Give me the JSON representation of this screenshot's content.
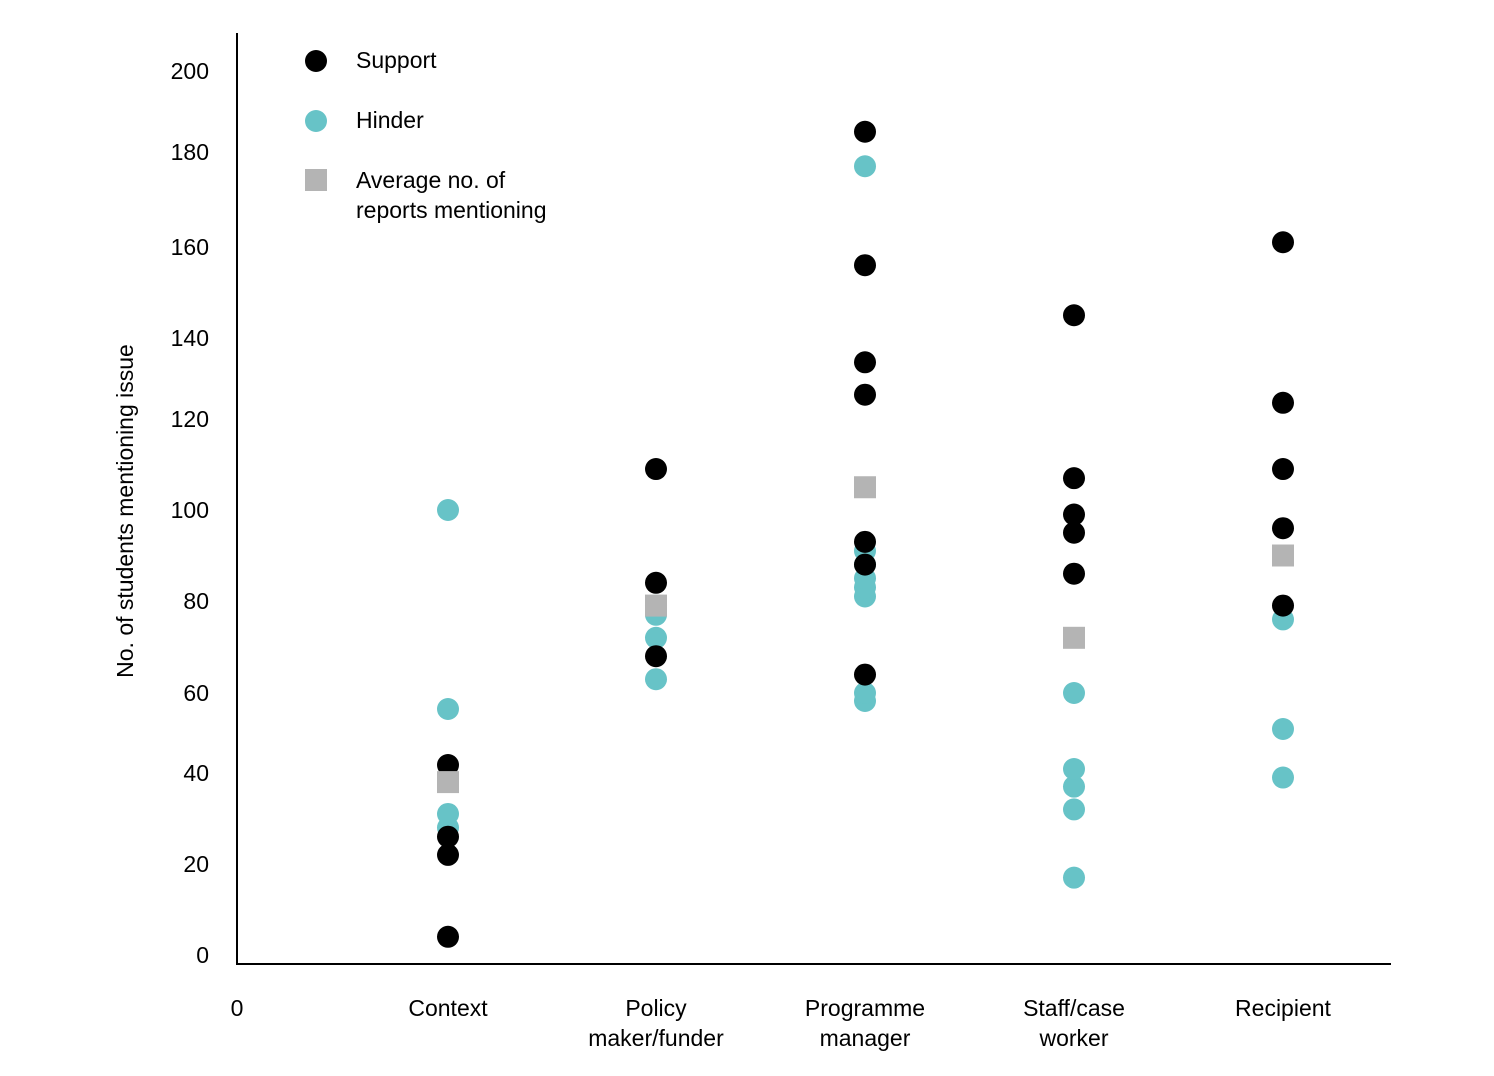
{
  "chart_data": {
    "type": "scatter",
    "ylabel": "No. of students mentioning issue",
    "x_origin_label": "0",
    "categories": [
      [
        "Context"
      ],
      [
        "Policy",
        "maker/funder"
      ],
      [
        "Programme",
        "manager"
      ],
      [
        "Staff/case",
        "worker"
      ],
      [
        "Recipient"
      ]
    ],
    "y_ticks": [
      "0",
      "20",
      "40",
      "60",
      "80",
      "100",
      "120",
      "140",
      "160",
      "180",
      "200"
    ],
    "legend_position": "top-left",
    "series": [
      {
        "name": "Support",
        "marker": "circle",
        "color": "#000000",
        "values": [
          [
            4,
            22,
            26,
            42
          ],
          [
            68,
            84,
            109
          ],
          [
            64,
            88,
            93,
            126,
            134,
            156,
            185
          ],
          [
            86,
            95,
            99,
            107,
            145
          ],
          [
            79,
            96,
            109,
            124,
            161
          ]
        ]
      },
      {
        "name": "Hinder",
        "marker": "circle",
        "color": "#67c3c7",
        "values": [
          [
            28,
            31,
            56,
            100
          ],
          [
            63,
            72,
            77,
            79
          ],
          [
            58,
            60,
            81,
            83,
            85,
            88,
            91,
            177
          ],
          [
            17,
            32,
            37,
            41,
            60
          ],
          [
            39,
            51,
            76
          ]
        ]
      },
      {
        "name": "Average no. of reports mentioning",
        "legend_lines": [
          "Average no. of",
          "reports mentioning"
        ],
        "marker": "square",
        "color": "#b4b4b4",
        "values": [
          38,
          79,
          105,
          72,
          90
        ]
      }
    ]
  }
}
